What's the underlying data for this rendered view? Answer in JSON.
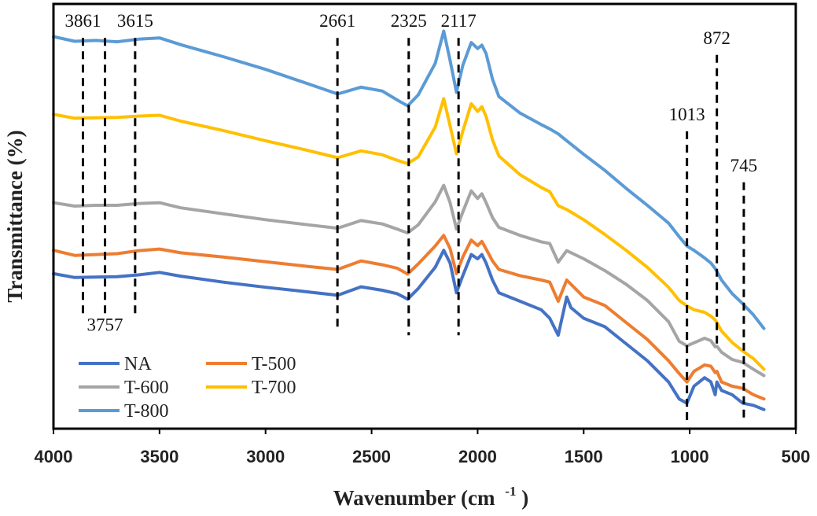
{
  "chart_data": {
    "type": "line",
    "title": "",
    "xlabel": "Wavenumber (cm",
    "xlabel_sup": "-1",
    "xlabel_close": ")",
    "ylabel": "Transmittance (%)",
    "xlim": [
      4000,
      500
    ],
    "x_reversed": true,
    "xticks": [
      "4000",
      "3500",
      "3000",
      "2500",
      "2000",
      "1500",
      "1000",
      "500"
    ],
    "xtick_values": [
      4000,
      3500,
      3000,
      2500,
      2000,
      1500,
      1000,
      500
    ],
    "ylim": [
      0,
      100
    ],
    "yticks_shown": false,
    "grid": false,
    "legend_position": "bottom-left",
    "series": [
      {
        "name": "NA",
        "color": "#4472C4",
        "x": [
          4000,
          3900,
          3800,
          3700,
          3600,
          3500,
          3400,
          3200,
          3000,
          2800,
          2660,
          2550,
          2450,
          2380,
          2330,
          2280,
          2200,
          2160,
          2130,
          2100,
          2070,
          2030,
          2000,
          1980,
          1960,
          1930,
          1900,
          1800,
          1700,
          1660,
          1620,
          1580,
          1560,
          1500,
          1400,
          1300,
          1200,
          1100,
          1050,
          1013,
          980,
          930,
          900,
          880,
          872,
          850,
          800,
          750,
          700,
          650
        ],
        "y": [
          36.5,
          35.6,
          35.7,
          35.8,
          36.2,
          36.8,
          35.9,
          34.5,
          33.3,
          32.2,
          31.4,
          33.4,
          32.6,
          31.8,
          30.5,
          33,
          38,
          42,
          39,
          32,
          36,
          41,
          40,
          41,
          39,
          35,
          32,
          30,
          28,
          26,
          22,
          31,
          28.5,
          26,
          24,
          20,
          16,
          11,
          7,
          6,
          10,
          12,
          11,
          8,
          11,
          9,
          8,
          6,
          5.5,
          4.5
        ]
      },
      {
        "name": "T-500",
        "color": "#ED7D31",
        "x": [
          4000,
          3900,
          3800,
          3700,
          3600,
          3500,
          3400,
          3200,
          3000,
          2800,
          2660,
          2550,
          2450,
          2380,
          2330,
          2280,
          2200,
          2160,
          2130,
          2100,
          2070,
          2030,
          2000,
          1980,
          1960,
          1930,
          1900,
          1800,
          1700,
          1660,
          1620,
          1580,
          1500,
          1400,
          1300,
          1200,
          1100,
          1050,
          1013,
          980,
          930,
          900,
          880,
          872,
          850,
          800,
          750,
          700,
          650
        ],
        "y": [
          42,
          40.8,
          41,
          41.2,
          41.9,
          42.3,
          41.4,
          40.4,
          39.3,
          38.2,
          37.5,
          39.5,
          38.6,
          37.8,
          36.4,
          38.8,
          43,
          45.5,
          42.4,
          36.5,
          40.4,
          44.4,
          43.1,
          44.1,
          42.3,
          39.5,
          37.5,
          36,
          35,
          34.5,
          30,
          35,
          31,
          29,
          25,
          21,
          16,
          13,
          11,
          13.5,
          15,
          14.7,
          13.2,
          13.5,
          11,
          10,
          9.5,
          8,
          7
        ]
      },
      {
        "name": "T-600",
        "color": "#A5A5A5",
        "x": [
          4000,
          3900,
          3800,
          3700,
          3600,
          3500,
          3400,
          3200,
          3000,
          2800,
          2660,
          2550,
          2450,
          2380,
          2330,
          2280,
          2200,
          2160,
          2130,
          2100,
          2070,
          2030,
          2000,
          1980,
          1960,
          1930,
          1900,
          1800,
          1700,
          1660,
          1620,
          1580,
          1500,
          1400,
          1300,
          1200,
          1100,
          1050,
          1013,
          980,
          930,
          900,
          880,
          872,
          850,
          800,
          750,
          700,
          650
        ],
        "y": [
          53.2,
          52.4,
          52.6,
          52.6,
          53,
          53.2,
          52,
          50.6,
          49.2,
          48,
          47.2,
          49,
          48.2,
          47,
          46.1,
          48,
          53.4,
          57.3,
          53.2,
          47,
          51,
          56,
          54.2,
          55.3,
          53.2,
          49.7,
          47.4,
          45.5,
          44,
          43.6,
          39.2,
          41.9,
          40,
          37.2,
          34,
          30.2,
          25.2,
          20.6,
          19.5,
          20.2,
          21.3,
          20.7,
          19.3,
          19.4,
          18,
          16.3,
          15.6,
          14,
          12.5
        ]
      },
      {
        "name": "T-700",
        "color": "#FFC000",
        "x": [
          4000,
          3900,
          3800,
          3700,
          3600,
          3500,
          3400,
          3200,
          3000,
          2800,
          2660,
          2550,
          2450,
          2380,
          2330,
          2280,
          2200,
          2160,
          2130,
          2100,
          2070,
          2030,
          2000,
          1980,
          1960,
          1930,
          1900,
          1800,
          1700,
          1660,
          1620,
          1580,
          1500,
          1400,
          1300,
          1200,
          1100,
          1050,
          1013,
          980,
          930,
          900,
          880,
          872,
          850,
          800,
          750,
          700,
          650
        ],
        "y": [
          74,
          73.1,
          73.2,
          73.3,
          73.6,
          73.8,
          72.4,
          70.2,
          67.8,
          65.5,
          63.8,
          65.4,
          64.5,
          63.2,
          62.4,
          64,
          71,
          77.7,
          71.3,
          64.7,
          70,
          76.5,
          74.7,
          75.8,
          73.5,
          68,
          64.2,
          59.8,
          56.8,
          55.8,
          52.5,
          51.6,
          49.2,
          45.7,
          42,
          38,
          33.3,
          30.2,
          28.9,
          28,
          27.4,
          26.5,
          25.6,
          25,
          23,
          20.3,
          18.3,
          16.5,
          14
        ]
      },
      {
        "name": "T-800",
        "color": "#5B9BD5",
        "x": [
          4000,
          3900,
          3800,
          3700,
          3600,
          3500,
          3400,
          3200,
          3000,
          2800,
          2660,
          2550,
          2450,
          2380,
          2330,
          2280,
          2200,
          2160,
          2130,
          2100,
          2070,
          2030,
          2000,
          1980,
          1960,
          1930,
          1900,
          1800,
          1700,
          1660,
          1620,
          1580,
          1500,
          1400,
          1300,
          1200,
          1100,
          1050,
          1013,
          980,
          930,
          900,
          880,
          872,
          850,
          800,
          750,
          700,
          650
        ],
        "y": [
          92.3,
          91.2,
          91.4,
          91.1,
          91.7,
          92,
          90.4,
          87.6,
          84.6,
          81.2,
          78.8,
          80.4,
          79.5,
          77.4,
          76,
          78.6,
          86,
          93.6,
          86.7,
          79.2,
          85.5,
          90.9,
          89.5,
          90.3,
          88.3,
          82.3,
          78.2,
          74.3,
          71.6,
          70.6,
          69.4,
          67.8,
          64.6,
          60.8,
          56.6,
          52.6,
          48.4,
          45.2,
          43,
          42,
          40.2,
          39,
          37.7,
          37,
          35,
          31.8,
          29.4,
          26.8,
          23.6
        ]
      }
    ],
    "annotations": [
      {
        "label": "3861",
        "x": 3861,
        "line_top": 92,
        "line_bottom": 26,
        "label_pos": "top"
      },
      {
        "label": "3757",
        "x": 3757,
        "line_top": 92,
        "line_bottom": 26,
        "label_pos": "below"
      },
      {
        "label": "3615",
        "x": 3615,
        "line_top": 92,
        "line_bottom": 26,
        "label_pos": "top"
      },
      {
        "label": "2661",
        "x": 2661,
        "line_top": 92,
        "line_bottom": 24,
        "label_pos": "top"
      },
      {
        "label": "2325",
        "x": 2325,
        "line_top": 92,
        "line_bottom": 22,
        "label_pos": "top"
      },
      {
        "label": "2117",
        "x": 2090,
        "line_top": 92,
        "line_bottom": 22,
        "label_pos": "top"
      },
      {
        "label": "1013",
        "x": 1013,
        "line_top": 70,
        "line_bottom": 2,
        "label_pos": "top"
      },
      {
        "label": "872",
        "x": 872,
        "line_top": 88,
        "line_bottom": 20,
        "label_pos": "top"
      },
      {
        "label": "745",
        "x": 745,
        "line_top": 58,
        "line_bottom": 2,
        "label_pos": "top"
      }
    ],
    "legend": [
      {
        "name": "NA",
        "color": "#4472C4"
      },
      {
        "name": "T-500",
        "color": "#ED7D31"
      },
      {
        "name": "T-600",
        "color": "#A5A5A5"
      },
      {
        "name": "T-700",
        "color": "#FFC000"
      },
      {
        "name": "T-800",
        "color": "#5B9BD5"
      }
    ]
  }
}
